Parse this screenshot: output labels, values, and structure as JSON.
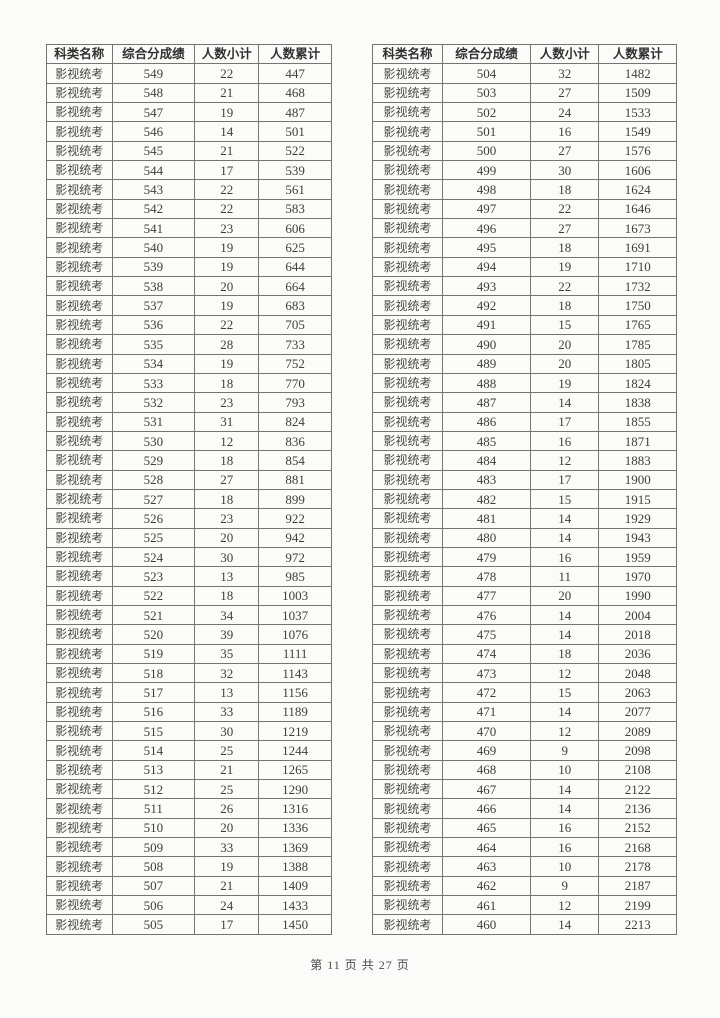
{
  "footer": {
    "page_indicator": "第 11 页 共 27 页"
  },
  "tables": [
    {
      "headers": [
        "科类名称",
        "综合分成绩",
        "人数小计",
        "人数累计"
      ],
      "category": "影视统考",
      "rows": [
        [
          549,
          22,
          447
        ],
        [
          548,
          21,
          468
        ],
        [
          547,
          19,
          487
        ],
        [
          546,
          14,
          501
        ],
        [
          545,
          21,
          522
        ],
        [
          544,
          17,
          539
        ],
        [
          543,
          22,
          561
        ],
        [
          542,
          22,
          583
        ],
        [
          541,
          23,
          606
        ],
        [
          540,
          19,
          625
        ],
        [
          539,
          19,
          644
        ],
        [
          538,
          20,
          664
        ],
        [
          537,
          19,
          683
        ],
        [
          536,
          22,
          705
        ],
        [
          535,
          28,
          733
        ],
        [
          534,
          19,
          752
        ],
        [
          533,
          18,
          770
        ],
        [
          532,
          23,
          793
        ],
        [
          531,
          31,
          824
        ],
        [
          530,
          12,
          836
        ],
        [
          529,
          18,
          854
        ],
        [
          528,
          27,
          881
        ],
        [
          527,
          18,
          899
        ],
        [
          526,
          23,
          922
        ],
        [
          525,
          20,
          942
        ],
        [
          524,
          30,
          972
        ],
        [
          523,
          13,
          985
        ],
        [
          522,
          18,
          1003
        ],
        [
          521,
          34,
          1037
        ],
        [
          520,
          39,
          1076
        ],
        [
          519,
          35,
          1111
        ],
        [
          518,
          32,
          1143
        ],
        [
          517,
          13,
          1156
        ],
        [
          516,
          33,
          1189
        ],
        [
          515,
          30,
          1219
        ],
        [
          514,
          25,
          1244
        ],
        [
          513,
          21,
          1265
        ],
        [
          512,
          25,
          1290
        ],
        [
          511,
          26,
          1316
        ],
        [
          510,
          20,
          1336
        ],
        [
          509,
          33,
          1369
        ],
        [
          508,
          19,
          1388
        ],
        [
          507,
          21,
          1409
        ],
        [
          506,
          24,
          1433
        ],
        [
          505,
          17,
          1450
        ]
      ]
    },
    {
      "headers": [
        "科类名称",
        "综合分成绩",
        "人数小计",
        "人数累计"
      ],
      "category": "影视统考",
      "rows": [
        [
          504,
          32,
          1482
        ],
        [
          503,
          27,
          1509
        ],
        [
          502,
          24,
          1533
        ],
        [
          501,
          16,
          1549
        ],
        [
          500,
          27,
          1576
        ],
        [
          499,
          30,
          1606
        ],
        [
          498,
          18,
          1624
        ],
        [
          497,
          22,
          1646
        ],
        [
          496,
          27,
          1673
        ],
        [
          495,
          18,
          1691
        ],
        [
          494,
          19,
          1710
        ],
        [
          493,
          22,
          1732
        ],
        [
          492,
          18,
          1750
        ],
        [
          491,
          15,
          1765
        ],
        [
          490,
          20,
          1785
        ],
        [
          489,
          20,
          1805
        ],
        [
          488,
          19,
          1824
        ],
        [
          487,
          14,
          1838
        ],
        [
          486,
          17,
          1855
        ],
        [
          485,
          16,
          1871
        ],
        [
          484,
          12,
          1883
        ],
        [
          483,
          17,
          1900
        ],
        [
          482,
          15,
          1915
        ],
        [
          481,
          14,
          1929
        ],
        [
          480,
          14,
          1943
        ],
        [
          479,
          16,
          1959
        ],
        [
          478,
          11,
          1970
        ],
        [
          477,
          20,
          1990
        ],
        [
          476,
          14,
          2004
        ],
        [
          475,
          14,
          2018
        ],
        [
          474,
          18,
          2036
        ],
        [
          473,
          12,
          2048
        ],
        [
          472,
          15,
          2063
        ],
        [
          471,
          14,
          2077
        ],
        [
          470,
          12,
          2089
        ],
        [
          469,
          9,
          2098
        ],
        [
          468,
          10,
          2108
        ],
        [
          467,
          14,
          2122
        ],
        [
          466,
          14,
          2136
        ],
        [
          465,
          16,
          2152
        ],
        [
          464,
          16,
          2168
        ],
        [
          463,
          10,
          2178
        ],
        [
          462,
          9,
          2187
        ],
        [
          461,
          12,
          2199
        ],
        [
          460,
          14,
          2213
        ]
      ]
    }
  ]
}
